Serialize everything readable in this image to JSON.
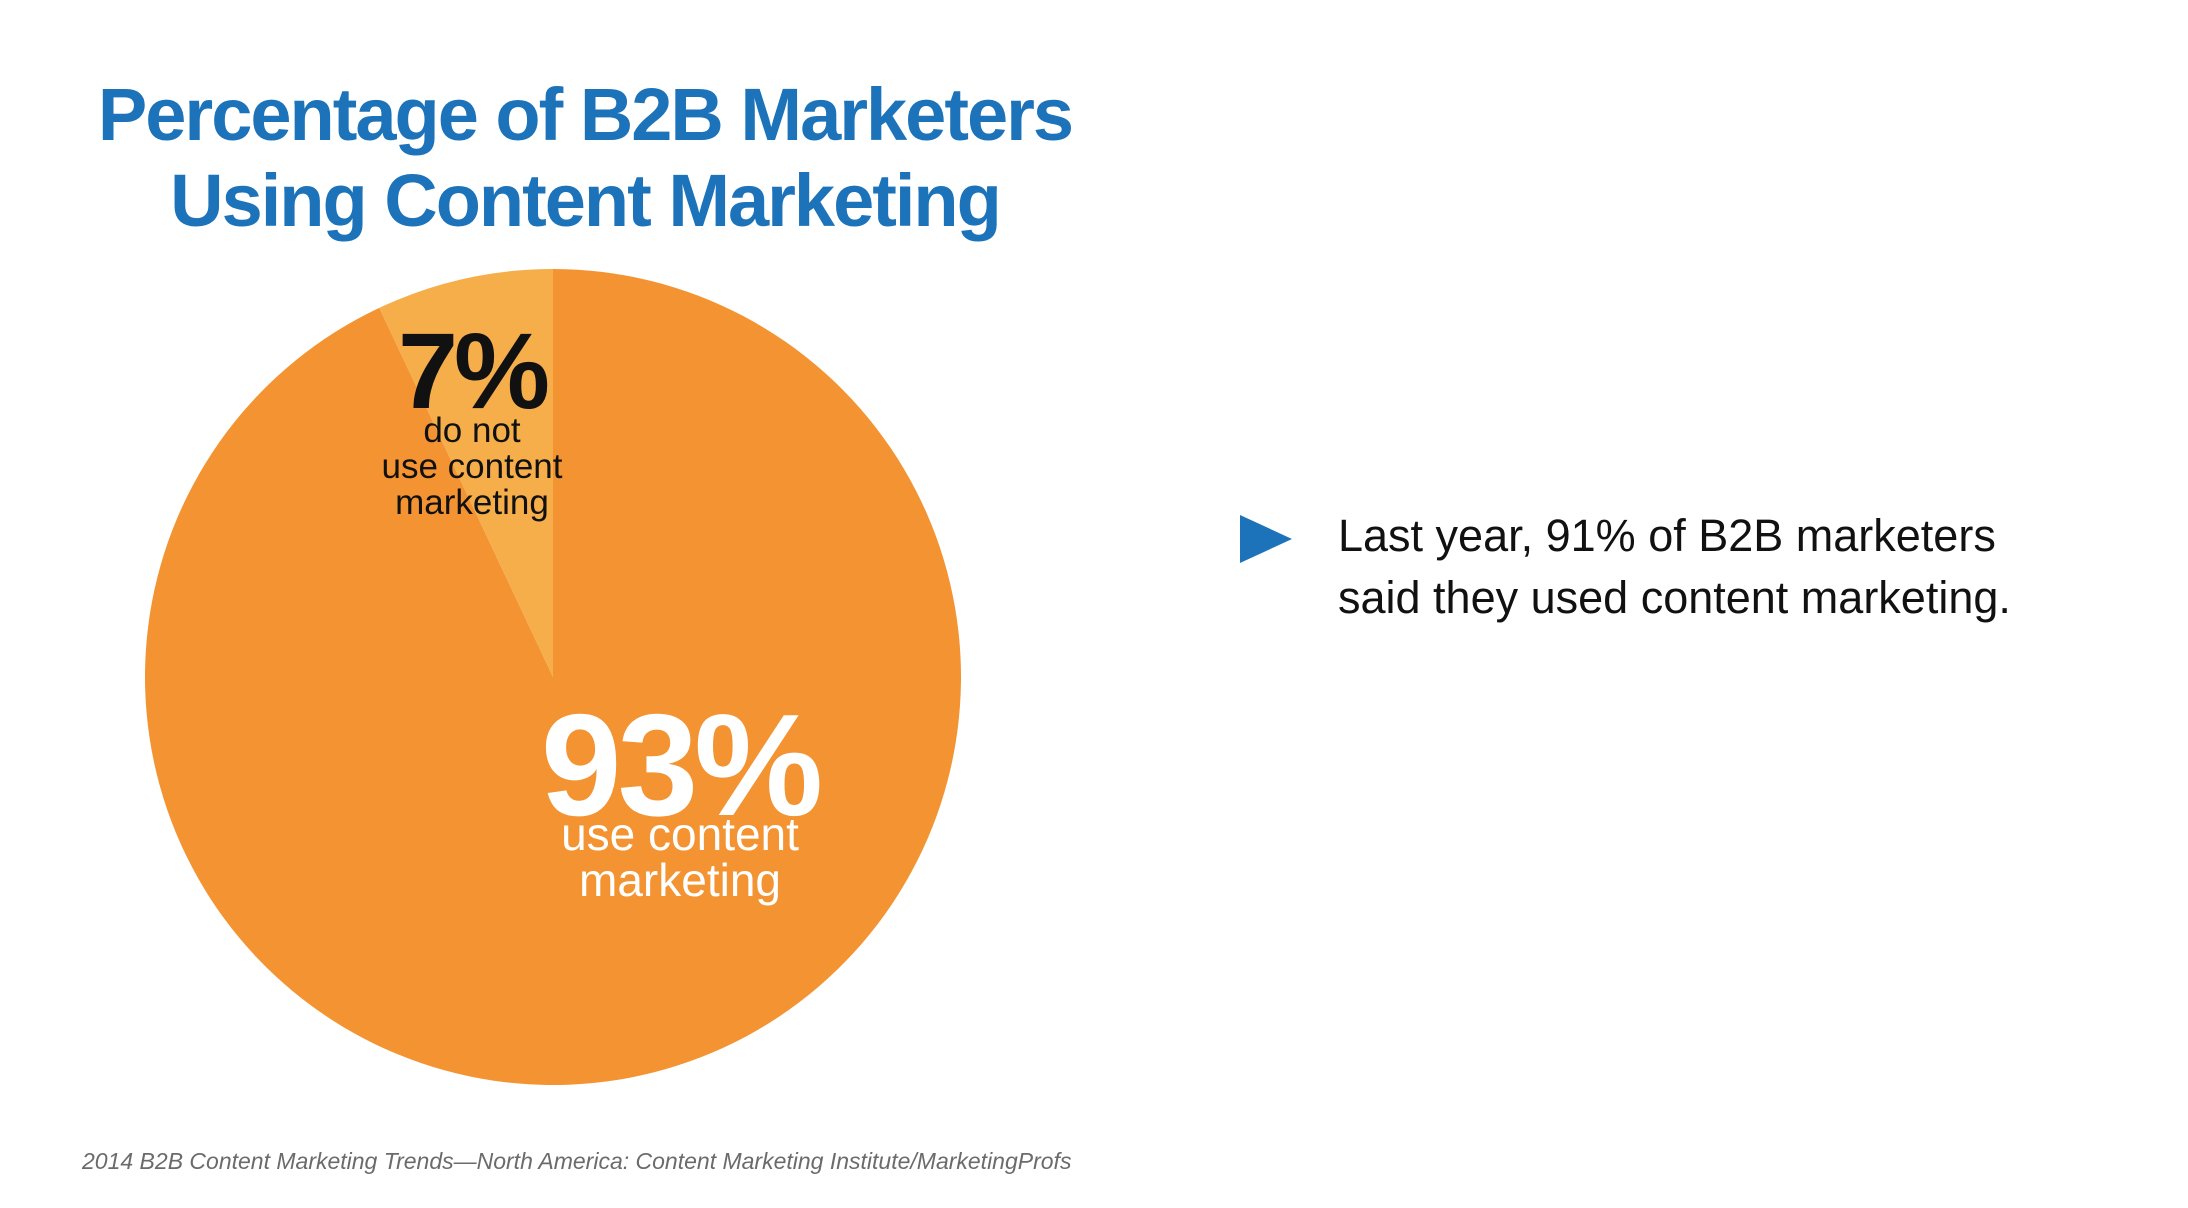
{
  "chart_data": {
    "type": "pie",
    "title": [
      "Percentage of B2B Marketers",
      "Using Content Marketing"
    ],
    "slices": [
      {
        "value": 93,
        "pct_label": "93%",
        "label_lines": [
          "use content",
          "marketing"
        ],
        "color": "#f39332",
        "text_color": "#ffffff"
      },
      {
        "value": 7,
        "pct_label": "7%",
        "label_lines": [
          "do not",
          "use content",
          "marketing"
        ],
        "color": "#f6ae4a",
        "text_color": "#111111"
      }
    ]
  },
  "note": {
    "text_lines": [
      "Last year, 91% of B2B marketers",
      "said they used content marketing."
    ],
    "bullet_color": "#1c73b9"
  },
  "source": "2014 B2B Content Marketing Trends—North America: Content Marketing Institute/MarketingProfs"
}
